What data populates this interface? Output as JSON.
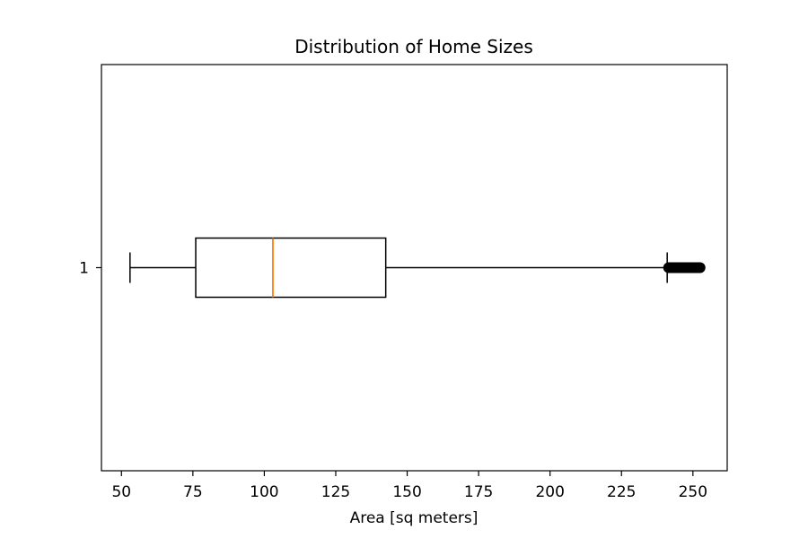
{
  "chart_data": {
    "type": "box",
    "title": "Distribution of Home Sizes",
    "xlabel": "Area [sq meters]",
    "ylabel": "",
    "orientation": "horizontal",
    "xlim": [
      43.0,
      262.0
    ],
    "xticks": [
      50,
      75,
      100,
      125,
      150,
      175,
      200,
      225,
      250
    ],
    "categories": [
      "1"
    ],
    "boxes": [
      {
        "category": "1",
        "whisker_low": 53,
        "q1": 76,
        "median": 103,
        "q3": 142.5,
        "whisker_high": 241,
        "outliers": [
          241.5,
          242,
          242.5,
          243,
          243.5,
          244,
          244.5,
          245,
          245.5,
          246,
          246.5,
          247,
          247.5,
          248,
          248.5,
          249,
          249.5,
          250,
          250.5,
          251,
          251.5,
          252,
          252.5
        ]
      }
    ],
    "grid": false,
    "colors": {
      "box": "#000000",
      "median": "#ff7f0e",
      "whisker": "#000000",
      "outlier": "#000000"
    }
  }
}
